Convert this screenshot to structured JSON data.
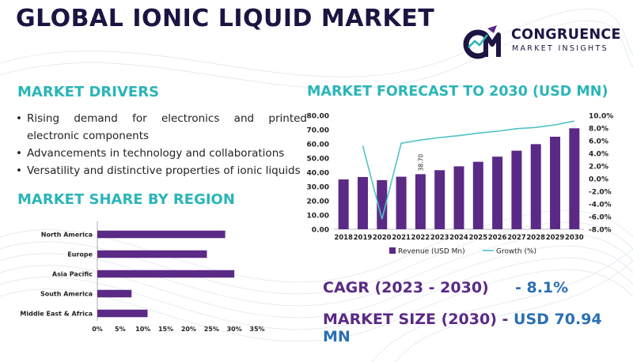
{
  "title": "GLOBAL IONIC LIQUID MARKET",
  "logo": {
    "name": "CONGRUENCE",
    "tagline": "MARKET INSIGHTS"
  },
  "drivers": {
    "title": "MARKET DRIVERS",
    "items": [
      "Rising demand for electronics and printed electronic components",
      "Advancements in technology and collaborations",
      "Versatility and distinctive properties of ionic liquids"
    ]
  },
  "stats": {
    "cagr_label": "CAGR (2023 - 2030)",
    "cagr_value": "- 8.1%",
    "size_label": "MARKET SIZE (2030) -",
    "size_value": "USD 70.94 MN"
  },
  "colors": {
    "accent": "#2bb5b8",
    "bar": "#5a2a86",
    "title": "#1d1442",
    "value": "#2a6fb5"
  },
  "chart_data": [
    {
      "type": "bar+line",
      "title": "MARKET FORECAST TO 2030 (USD MN)",
      "categories": [
        "2018",
        "2019",
        "2020",
        "2021",
        "2022",
        "2023",
        "2024",
        "2025",
        "2026",
        "2027",
        "2028",
        "2029",
        "2030"
      ],
      "series": [
        {
          "name": "Revenue (USD Mn)",
          "type": "bar",
          "axis": "left",
          "values": [
            35.0,
            36.7,
            34.5,
            36.9,
            38.7,
            41.5,
            44.2,
            47.4,
            51.0,
            55.2,
            59.8,
            65.0,
            70.94
          ]
        },
        {
          "name": "Growth (%)",
          "type": "line",
          "axis": "right",
          "values": [
            null,
            5.2,
            -6.4,
            5.6,
            6.1,
            6.5,
            6.8,
            7.2,
            7.5,
            7.9,
            8.1,
            8.5,
            9.1
          ]
        }
      ],
      "data_labels": [
        {
          "index": 4,
          "text": "38.70"
        }
      ],
      "y_left": {
        "min": 0,
        "max": 80,
        "ticks": [
          "0.00",
          "10.00",
          "20.00",
          "30.00",
          "40.00",
          "50.00",
          "60.00",
          "70.00",
          "80.00"
        ]
      },
      "y_right": {
        "min": -8,
        "max": 10,
        "ticks": [
          "10.0%",
          "8.0%",
          "6.0%",
          "4.0%",
          "2.0%",
          "0.0%",
          "-2.0%",
          "-4.0%",
          "-6.0%",
          "-8.0%"
        ]
      },
      "legend": "bottom",
      "grid": false
    },
    {
      "type": "bar",
      "orientation": "horizontal",
      "title": "MARKET SHARE BY REGION",
      "categories": [
        "North America",
        "Europe",
        "Asia Pacific",
        "South America",
        "Middle East & Africa"
      ],
      "values": [
        28,
        24,
        30,
        7.5,
        11
      ],
      "x_ticks": [
        "0%",
        "5%",
        "10%",
        "15%",
        "20%",
        "25%",
        "30%",
        "35%"
      ],
      "xlim": [
        0,
        35
      ],
      "grid": false
    }
  ]
}
